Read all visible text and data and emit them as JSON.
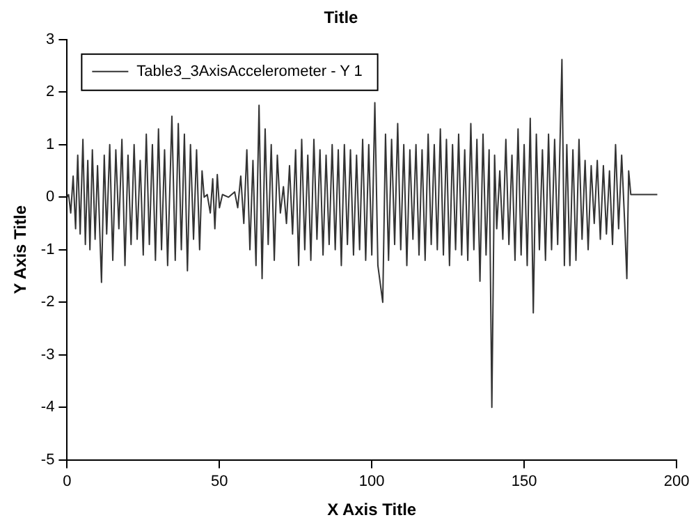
{
  "chart_data": {
    "type": "line",
    "title": "Title",
    "xlabel": "X Axis Title",
    "ylabel": "Y Axis Title",
    "xlim": [
      0,
      200
    ],
    "xticks": [
      0,
      50,
      100,
      150,
      200
    ],
    "ylim": [
      -5,
      3
    ],
    "yticks": [
      -5,
      -4,
      -3,
      -2,
      -1,
      0,
      1,
      2,
      3
    ],
    "grid": false,
    "legend": "top left",
    "marker": "none",
    "line_style": "solid",
    "series": [
      {
        "name": "Table3_3AxisAccelerometer - Y 1",
        "color": "#333333",
        "x": [
          0,
          0.5,
          1.2,
          2,
          2.8,
          3.5,
          4.3,
          5.2,
          6,
          6.8,
          7.5,
          8.3,
          9.2,
          10,
          11.3,
          12.2,
          13,
          14,
          15,
          16,
          17,
          18,
          19,
          20,
          21,
          22,
          23,
          24,
          25,
          26,
          27,
          28,
          29,
          30,
          31,
          32,
          33,
          34.4,
          35.5,
          36.5,
          37.5,
          38.5,
          39.5,
          40.5,
          41.5,
          42.5,
          43.5,
          44.3,
          45,
          46,
          47,
          47.8,
          48.5,
          49.3,
          50,
          51,
          53,
          55,
          56,
          57,
          58,
          59,
          60,
          61,
          62,
          63,
          64,
          65,
          66,
          67,
          68,
          69,
          70,
          71,
          72,
          73,
          74,
          75,
          76,
          77,
          78,
          79,
          80,
          81,
          82,
          83,
          84,
          85,
          86,
          87,
          88,
          89,
          90,
          91,
          92,
          93,
          94,
          95,
          96,
          97,
          98,
          99,
          100,
          101,
          102,
          103.6,
          104.5,
          105.5,
          106.5,
          107.5,
          108.5,
          109.5,
          110.5,
          111.5,
          112.5,
          113.5,
          114.5,
          115.5,
          116.5,
          117.5,
          118.5,
          119.5,
          120.5,
          121.5,
          122.5,
          123.5,
          124.5,
          125.5,
          126.5,
          127.5,
          128.5,
          129.5,
          130.5,
          131.5,
          132.5,
          133.5,
          134.5,
          135.5,
          136.5,
          137.5,
          138.5,
          139.4,
          140.3,
          141,
          142,
          143,
          144,
          145,
          146,
          147,
          148,
          149,
          150,
          151,
          152,
          153,
          154,
          155,
          156,
          157,
          158,
          159,
          160,
          161,
          162.4,
          163.2,
          164,
          165,
          166,
          167,
          168,
          169,
          170,
          171,
          172,
          173,
          174,
          175,
          176,
          177,
          178,
          179,
          180,
          181,
          182,
          183,
          183.7,
          184.3,
          185,
          186,
          190,
          193.7
        ],
        "values": [
          0,
          0.05,
          -0.3,
          0.4,
          -0.6,
          0.8,
          -0.7,
          1.1,
          -0.9,
          0.7,
          -1.0,
          0.9,
          -0.8,
          0.6,
          -1.62,
          0.8,
          -0.7,
          1.0,
          -1.2,
          0.9,
          -0.6,
          1.1,
          -1.3,
          0.8,
          -0.9,
          1.0,
          -0.8,
          0.7,
          -1.1,
          1.2,
          -0.9,
          1.0,
          -1.2,
          1.3,
          -1.0,
          0.9,
          -1.3,
          1.54,
          -1.2,
          1.4,
          -1.0,
          1.2,
          -1.4,
          1.0,
          -0.8,
          0.9,
          -1.0,
          0.5,
          0.0,
          0.05,
          -0.3,
          0.35,
          -0.6,
          0.43,
          -0.2,
          0.05,
          0.0,
          0.1,
          -0.2,
          0.4,
          -0.5,
          0.9,
          -1.0,
          0.7,
          -1.3,
          1.75,
          -1.55,
          1.3,
          -0.9,
          1.0,
          -1.2,
          0.8,
          -0.3,
          0.2,
          -0.5,
          0.6,
          -0.7,
          0.9,
          -1.3,
          1.1,
          -1.0,
          0.8,
          -1.2,
          1.1,
          -0.8,
          0.9,
          -1.1,
          0.8,
          -0.9,
          1.0,
          -1.0,
          0.9,
          -1.3,
          1.0,
          -0.9,
          0.9,
          -1.1,
          0.8,
          -1.0,
          1.1,
          -1.2,
          1.0,
          -1.1,
          1.8,
          -1.3,
          -2.0,
          1.2,
          -1.2,
          1.1,
          -0.9,
          1.4,
          -1.0,
          1.0,
          -1.3,
          0.9,
          -0.8,
          1.0,
          -1.1,
          0.9,
          -1.2,
          1.2,
          -0.9,
          1.0,
          -1.0,
          1.3,
          -1.1,
          1.1,
          -1.3,
          1.0,
          -1.0,
          1.2,
          -1.1,
          0.9,
          -1.2,
          1.4,
          -1.0,
          1.1,
          -1.6,
          1.2,
          -1.1,
          0.9,
          -4.0,
          0.8,
          -0.6,
          0.5,
          -0.8,
          1.1,
          -0.9,
          0.8,
          -1.2,
          1.3,
          -1.1,
          1.0,
          -1.3,
          1.5,
          -2.2,
          1.2,
          -1.0,
          0.9,
          -1.2,
          1.2,
          -1.0,
          1.1,
          -0.9,
          2.62,
          -1.3,
          1.0,
          -1.3,
          0.9,
          -1.2,
          1.1,
          -0.8,
          0.7,
          -1.0,
          0.6,
          -0.5,
          0.7,
          -0.8,
          0.6,
          -0.7,
          0.5,
          -0.9,
          1.0,
          -0.6,
          0.8,
          -0.5,
          -1.55,
          0.5,
          0.05,
          0.05,
          0.05,
          0.05
        ]
      }
    ]
  }
}
